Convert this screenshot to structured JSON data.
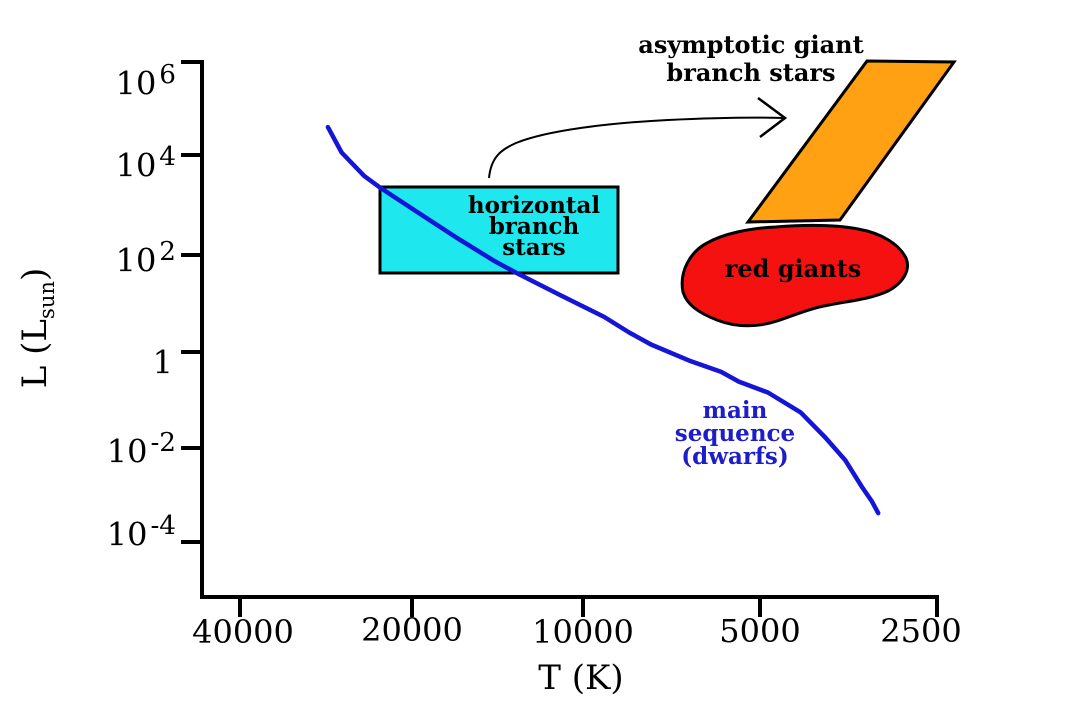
{
  "colors": {
    "background": "#ffffff",
    "axis": "#000000",
    "main_sequence_curve": "#1515d8",
    "main_sequence_label_text": "#1d1dc9",
    "horizontal_branch_fill": "#1ee8ee",
    "agb_fill": "#ffa113",
    "red_giants_fill": "#f61111",
    "annotation_text": "#000000",
    "arrow": "#000000"
  },
  "labels": {
    "agb": "asymptotic giant\nbranch stars",
    "horizontal_branch": "horizontal\nbranch\nstars",
    "red_giants": "red giants",
    "main_sequence": "main\nsequence\n(dwarfs)",
    "x_axis_title": "T (K)",
    "y_axis_title_prefix": "L (L",
    "y_axis_title_sub": "sun",
    "y_axis_title_suffix": ")"
  },
  "chart_data": {
    "type": "line",
    "title": "",
    "xlabel": "T (K)",
    "ylabel": "L (L_sun)",
    "x_scale": "log (reversed, hotter to the left)",
    "y_scale": "log",
    "grid": false,
    "legend_position": "none (labels drawn inside plot)",
    "xlim": [
      46500,
      2500
    ],
    "ylim": [
      3e-05,
      3000000
    ],
    "x_ticks": [
      "40000",
      "20000",
      "10000",
      "5000",
      "2500"
    ],
    "x_tick_values": [
      40000,
      20000,
      10000,
      5000,
      2500
    ],
    "y_ticks": [
      {
        "base": "10",
        "exp": "6"
      },
      {
        "base": "10",
        "exp": "4"
      },
      {
        "base": "10",
        "exp": "2"
      },
      {
        "base": "1",
        "exp": ""
      },
      {
        "base": "10",
        "exp": "-2"
      },
      {
        "base": "10",
        "exp": "-4"
      }
    ],
    "y_tick_values": [
      1000000,
      10000,
      100,
      1,
      0.01,
      0.0001
    ],
    "series": [
      {
        "name": "main sequence (dwarfs)",
        "style": "solid curve",
        "points_format": "[temperature_K, luminosity_Lsun]",
        "points": [
          [
            28200,
            44000
          ],
          [
            26700,
            13000
          ],
          [
            24400,
            4200
          ],
          [
            22900,
            2400
          ],
          [
            19600,
            700
          ],
          [
            16700,
            200
          ],
          [
            14500,
            70
          ],
          [
            13300,
            40
          ],
          [
            11200,
            14
          ],
          [
            9400,
            4.9
          ],
          [
            8500,
            2.3
          ],
          [
            7800,
            1.3
          ],
          [
            6700,
            0.6
          ],
          [
            5900,
            0.35
          ],
          [
            5500,
            0.22
          ],
          [
            4900,
            0.13
          ],
          [
            4300,
            0.05
          ],
          [
            3900,
            0.015
          ],
          [
            3600,
            0.005
          ],
          [
            3370,
            0.0014
          ],
          [
            3240,
            0.0007
          ],
          [
            3160,
            0.0004
          ]
        ]
      }
    ],
    "regions": [
      {
        "label": "horizontal branch stars",
        "shape": "rectangle",
        "t_range": [
          23000,
          8900
        ],
        "l_range": [
          40,
          2500
        ]
      },
      {
        "label": "asymptotic giant branch stars",
        "shape": "parallelogram",
        "t_range": [
          5300,
          2300
        ],
        "l_range": [
          460,
          1100000
        ]
      },
      {
        "label": "red giants",
        "shape": "blob",
        "t_range": [
          6900,
          2800
        ],
        "l_range": [
          3,
          400
        ]
      }
    ]
  }
}
